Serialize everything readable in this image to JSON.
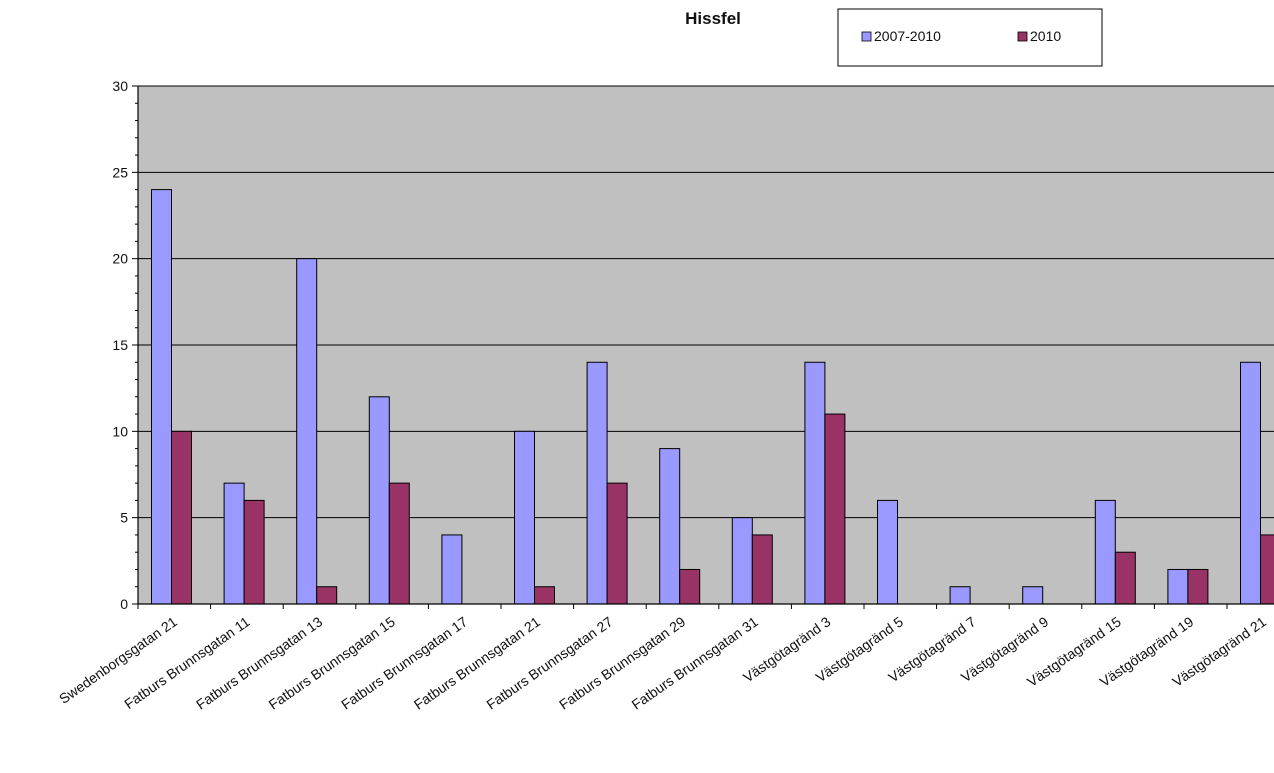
{
  "chart_data": {
    "type": "bar",
    "title": "Hissfel",
    "xlabel": "",
    "ylabel": "",
    "ylim": [
      0,
      30
    ],
    "yticks": [
      "0",
      "5",
      "10",
      "15",
      "20",
      "25",
      "30"
    ],
    "grid": true,
    "legend_position": "top-right",
    "categories": [
      "Swedenborgsgatan 21",
      "Fatburs Brunnsgatan 11",
      "Fatburs Brunnsgatan 13",
      "Fatburs Brunnsgatan 15",
      "Fatburs Brunnsgatan 17",
      "Fatburs Brunnsgatan 21",
      "Fatburs Brunnsgatan 27",
      "Fatburs Brunnsgatan 29",
      "Fatburs Brunnsgatan 31",
      "Västgötagränd 3",
      "Västgötagränd 5",
      "Västgötagränd 7",
      "Västgötagränd 9",
      "Västgötagränd 15",
      "Västgötagränd 19",
      "Västgötagränd 21"
    ],
    "series": [
      {
        "name": "2007-2010",
        "color": "#9999ff",
        "values": [
          24,
          7,
          20,
          12,
          4,
          10,
          14,
          9,
          5,
          14,
          6,
          1,
          1,
          6,
          2,
          14
        ]
      },
      {
        "name": "2010",
        "color": "#993366",
        "values": [
          10,
          6,
          1,
          7,
          0,
          1,
          7,
          2,
          4,
          11,
          0,
          0,
          0,
          3,
          2,
          4
        ]
      }
    ],
    "plot_background": "#c0c0c0"
  }
}
